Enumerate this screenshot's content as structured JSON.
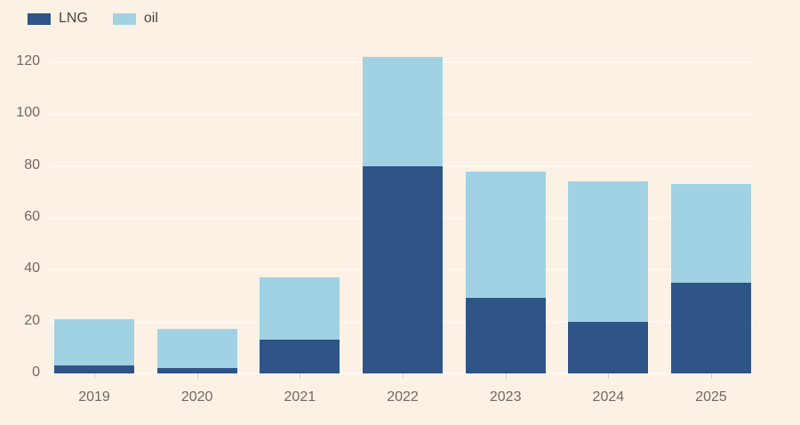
{
  "colors": {
    "background": "#fcf1e5",
    "gridline": "#fff8ee",
    "axis_label": "#6f6a64",
    "legend_label": "#4a4540",
    "lng": "#2f5487",
    "oil": "#a1d2e4"
  },
  "chart_data": {
    "type": "bar",
    "stacked": true,
    "title": "",
    "xlabel": "",
    "ylabel": "",
    "categories": [
      "2019",
      "2020",
      "2021",
      "2022",
      "2023",
      "2024",
      "2025"
    ],
    "series": [
      {
        "name": "LNG",
        "color": "#2f5487",
        "values": [
          3,
          2,
          13,
          80,
          29,
          20,
          35
        ]
      },
      {
        "name": "oil",
        "color": "#a1d2e4",
        "values": [
          18,
          15,
          24,
          42,
          49,
          54,
          38
        ]
      }
    ],
    "totals": [
      21,
      17,
      37,
      122,
      78,
      74,
      73
    ],
    "ylim": [
      0,
      120
    ],
    "yticks": [
      0,
      20,
      40,
      60,
      80,
      100,
      120
    ],
    "grid": "horizontal",
    "legend_position": "top-left"
  }
}
